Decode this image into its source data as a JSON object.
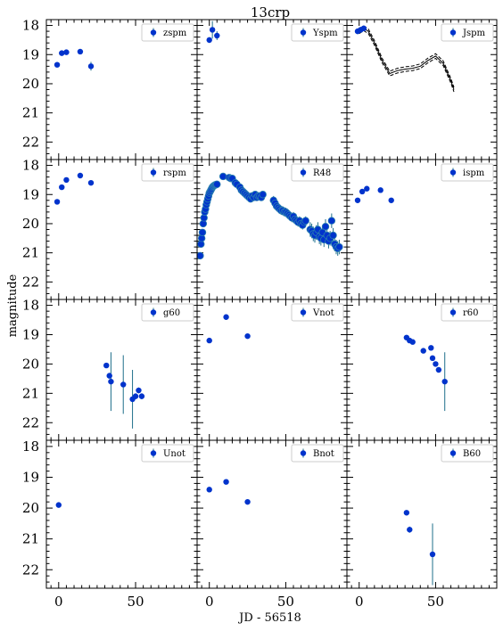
{
  "chart_data": {
    "type": "scatter",
    "title": "13crp",
    "xlabel": "JD - 56518",
    "ylabel": "magnitude",
    "xlim": [
      -8,
      90
    ],
    "ylim": [
      22.6,
      17.8
    ],
    "xticks": [
      0,
      50
    ],
    "yticks": [
      18,
      19,
      20,
      21,
      22
    ],
    "marker_color": "#0033cc",
    "errorbar_color": "#1f6f8b",
    "panels": [
      {
        "band": "zspm",
        "x": [
          -1,
          2,
          5,
          14,
          21
        ],
        "y": [
          19.35,
          18.95,
          18.92,
          18.9,
          19.4
        ],
        "err": [
          0.05,
          0.05,
          0.05,
          0.05,
          0.15
        ]
      },
      {
        "band": "Yspm",
        "x": [
          0,
          2,
          5
        ],
        "y": [
          18.5,
          18.15,
          18.35
        ],
        "err": [
          0.1,
          0.3,
          0.15
        ]
      },
      {
        "band": "Jspm",
        "x": [
          -1,
          1,
          3
        ],
        "y": [
          18.2,
          18.15,
          18.1
        ],
        "err": [
          0.1,
          0.1,
          0.1
        ],
        "model": {
          "x": [
            0,
            3,
            6,
            10,
            15,
            20,
            25,
            30,
            35,
            40,
            45,
            50,
            55,
            60,
            62
          ],
          "y": [
            18.2,
            18.1,
            18.2,
            18.6,
            19.2,
            19.65,
            19.55,
            19.5,
            19.47,
            19.4,
            19.2,
            19.05,
            19.3,
            19.9,
            20.2
          ],
          "band": 0.08
        }
      },
      {
        "band": "rspm",
        "x": [
          -1,
          2,
          5,
          14,
          21
        ],
        "y": [
          19.25,
          18.75,
          18.5,
          18.35,
          18.6
        ],
        "err": [
          0.05,
          0.05,
          0.05,
          0.05,
          0.05
        ]
      },
      {
        "band": "R48",
        "dense": true,
        "x": [
          -6,
          -5.5,
          -5,
          -4.5,
          -4,
          -3.5,
          -3,
          -2.5,
          -2,
          -1.5,
          -1,
          -0.5,
          0,
          0.5,
          1,
          1.5,
          2,
          2.5,
          3,
          3.5,
          4,
          4.5,
          5,
          9,
          13,
          14,
          15,
          17,
          18,
          20,
          21,
          22,
          23,
          24,
          25,
          26,
          27,
          28,
          29,
          30,
          31,
          32,
          33,
          34,
          35,
          42,
          43,
          44,
          45,
          46,
          47,
          48,
          49,
          50,
          51,
          52,
          53,
          54,
          55,
          56,
          57,
          58,
          59,
          60,
          61,
          62,
          63,
          66,
          67,
          68,
          69,
          70,
          71,
          72,
          73,
          74,
          75,
          76,
          77,
          78,
          79,
          80,
          81,
          82,
          83,
          84,
          85
        ],
        "y": [
          21.1,
          20.7,
          20.5,
          20.3,
          20.0,
          19.8,
          19.6,
          19.5,
          19.35,
          19.25,
          19.15,
          19.05,
          18.95,
          18.9,
          18.85,
          18.8,
          18.75,
          18.72,
          18.7,
          18.68,
          18.67,
          18.66,
          18.65,
          18.38,
          18.42,
          18.45,
          18.45,
          18.6,
          18.65,
          18.75,
          18.85,
          18.9,
          18.95,
          19.0,
          19.05,
          19.1,
          19.15,
          19.05,
          19.1,
          19.0,
          19.1,
          19.05,
          19.05,
          19.1,
          19.0,
          19.2,
          19.3,
          19.4,
          19.45,
          19.5,
          19.55,
          19.55,
          19.6,
          19.6,
          19.65,
          19.7,
          19.75,
          19.8,
          19.75,
          19.85,
          19.9,
          19.95,
          19.9,
          20.0,
          20.05,
          19.95,
          19.9,
          20.2,
          20.25,
          20.35,
          20.4,
          20.3,
          20.2,
          20.45,
          20.5,
          20.3,
          20.55,
          20.1,
          20.4,
          20.6,
          20.5,
          19.9,
          20.4,
          20.7,
          20.8,
          20.85,
          20.8
        ],
        "err": [
          0.1,
          0.1,
          0.1,
          0.1,
          0.1,
          0.1,
          0.1,
          0.1,
          0.1,
          0.1,
          0.1,
          0.1,
          0.1,
          0.1,
          0.1,
          0.1,
          0.1,
          0.1,
          0.1,
          0.1,
          0.1,
          0.1,
          0.1,
          0.05,
          0.05,
          0.05,
          0.05,
          0.1,
          0.1,
          0.1,
          0.1,
          0.1,
          0.1,
          0.1,
          0.1,
          0.1,
          0.1,
          0.1,
          0.1,
          0.1,
          0.1,
          0.1,
          0.1,
          0.1,
          0.1,
          0.15,
          0.15,
          0.15,
          0.15,
          0.15,
          0.15,
          0.15,
          0.15,
          0.15,
          0.15,
          0.15,
          0.15,
          0.15,
          0.15,
          0.15,
          0.15,
          0.15,
          0.15,
          0.15,
          0.15,
          0.15,
          0.15,
          0.25,
          0.25,
          0.25,
          0.25,
          0.25,
          0.25,
          0.25,
          0.25,
          0.25,
          0.25,
          0.25,
          0.25,
          0.25,
          0.25,
          0.25,
          0.25,
          0.25,
          0.25,
          0.25,
          0.25
        ]
      },
      {
        "band": "ispm",
        "x": [
          -1,
          2,
          5,
          14,
          21
        ],
        "y": [
          19.2,
          18.9,
          18.8,
          18.85,
          19.2
        ],
        "err": [
          0.05,
          0.05,
          0.05,
          0.05,
          0.05
        ]
      },
      {
        "band": "g60",
        "x": [
          31,
          33,
          34,
          42,
          48,
          50,
          52,
          54
        ],
        "y": [
          20.05,
          20.4,
          20.6,
          20.7,
          21.2,
          21.1,
          20.9,
          21.1
        ],
        "err": [
          0.05,
          0.1,
          1.0,
          1.0,
          1.0,
          0.1,
          0.1,
          0.1
        ]
      },
      {
        "band": "Vnot",
        "x": [
          0,
          11,
          25
        ],
        "y": [
          19.2,
          18.4,
          19.05
        ],
        "err": [
          0.05,
          0.05,
          0.05
        ]
      },
      {
        "band": "r60",
        "x": [
          31,
          33,
          35,
          42,
          47,
          48,
          50,
          52,
          56
        ],
        "y": [
          19.1,
          19.2,
          19.25,
          19.55,
          19.45,
          19.8,
          20.0,
          20.2,
          20.6
        ],
        "err": [
          0.05,
          0.05,
          0.05,
          0.05,
          0.05,
          0.05,
          0.05,
          0.05,
          1.0
        ]
      },
      {
        "band": "Unot",
        "x": [
          0
        ],
        "y": [
          19.9
        ],
        "err": [
          0.05
        ]
      },
      {
        "band": "Bnot",
        "x": [
          0,
          11,
          25
        ],
        "y": [
          19.4,
          19.15,
          19.8
        ],
        "err": [
          0.05,
          0.05,
          0.05
        ]
      },
      {
        "band": "B60",
        "x": [
          31,
          33,
          48
        ],
        "y": [
          20.15,
          20.7,
          21.5
        ],
        "err": [
          0.05,
          0.1,
          1.0
        ]
      }
    ]
  }
}
